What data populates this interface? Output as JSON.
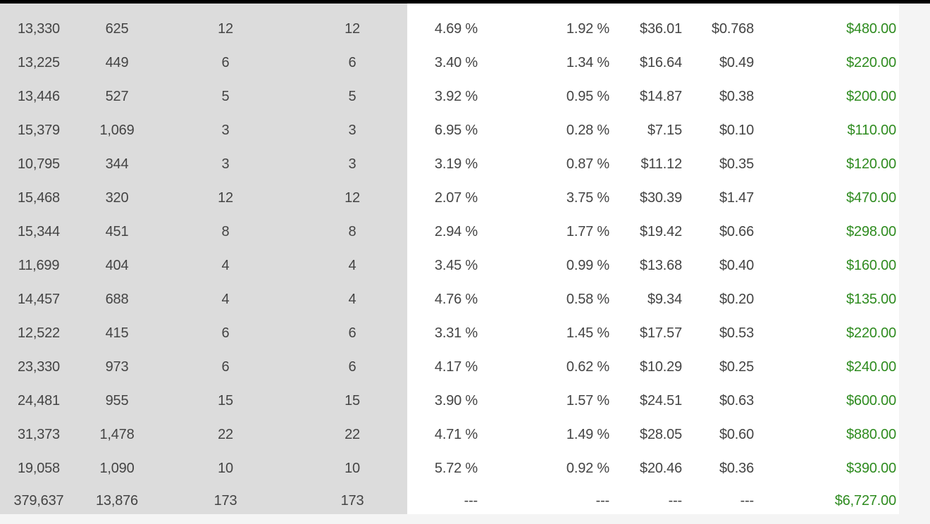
{
  "colors": {
    "grey_panel": "#dcdcdc",
    "content_panel": "#ffffff",
    "text": "#444444",
    "revenue_text": "#2e8b1f",
    "top_bar": "#000000"
  },
  "rows": [
    [
      "13,330",
      "625",
      "12",
      "12",
      "4.69 %",
      "1.92 %",
      "$36.01",
      "$0.768",
      "$480.00"
    ],
    [
      "13,225",
      "449",
      "6",
      "6",
      "3.40 %",
      "1.34 %",
      "$16.64",
      "$0.49",
      "$220.00"
    ],
    [
      "13,446",
      "527",
      "5",
      "5",
      "3.92 %",
      "0.95 %",
      "$14.87",
      "$0.38",
      "$200.00"
    ],
    [
      "15,379",
      "1,069",
      "3",
      "3",
      "6.95 %",
      "0.28 %",
      "$7.15",
      "$0.10",
      "$110.00"
    ],
    [
      "10,795",
      "344",
      "3",
      "3",
      "3.19 %",
      "0.87 %",
      "$11.12",
      "$0.35",
      "$120.00"
    ],
    [
      "15,468",
      "320",
      "12",
      "12",
      "2.07 %",
      "3.75 %",
      "$30.39",
      "$1.47",
      "$470.00"
    ],
    [
      "15,344",
      "451",
      "8",
      "8",
      "2.94 %",
      "1.77 %",
      "$19.42",
      "$0.66",
      "$298.00"
    ],
    [
      "11,699",
      "404",
      "4",
      "4",
      "3.45 %",
      "0.99 %",
      "$13.68",
      "$0.40",
      "$160.00"
    ],
    [
      "14,457",
      "688",
      "4",
      "4",
      "4.76 %",
      "0.58 %",
      "$9.34",
      "$0.20",
      "$135.00"
    ],
    [
      "12,522",
      "415",
      "6",
      "6",
      "3.31 %",
      "1.45 %",
      "$17.57",
      "$0.53",
      "$220.00"
    ],
    [
      "23,330",
      "973",
      "6",
      "6",
      "4.17 %",
      "0.62 %",
      "$10.29",
      "$0.25",
      "$240.00"
    ],
    [
      "24,481",
      "955",
      "15",
      "15",
      "3.90 %",
      "1.57 %",
      "$24.51",
      "$0.63",
      "$600.00"
    ],
    [
      "31,373",
      "1,478",
      "22",
      "22",
      "4.71 %",
      "1.49 %",
      "$28.05",
      "$0.60",
      "$880.00"
    ],
    [
      "19,058",
      "1,090",
      "10",
      "10",
      "5.72 %",
      "0.92 %",
      "$20.46",
      "$0.36",
      "$390.00"
    ]
  ],
  "totals": [
    "379,637",
    "13,876",
    "173",
    "173",
    "---",
    "---",
    "---",
    "---",
    "$6,727.00"
  ]
}
